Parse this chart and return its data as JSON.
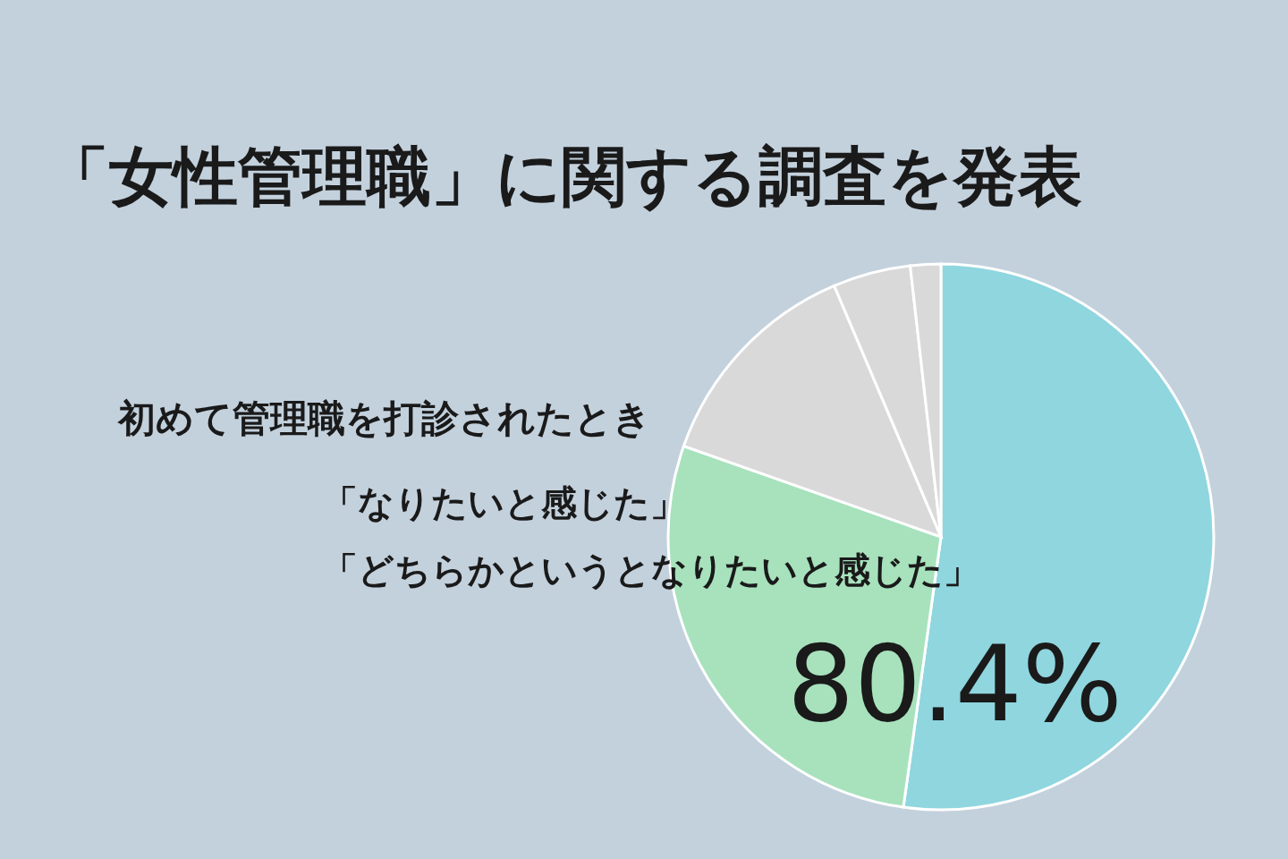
{
  "chart_data": {
    "type": "pie",
    "title": "「女性管理職」に関する調査を発表",
    "categories": [
      null,
      null,
      null,
      null,
      null
    ],
    "values": [
      52.2,
      28.2,
      13.2,
      4.6,
      1.8
    ],
    "colors": [
      "#8fd6df",
      "#a7e2bd",
      "#d9d9d9",
      "#d9d9d9",
      "#d9d9d9"
    ],
    "annotations": [
      "初めて管理職を打診されたとき",
      "「なりたいと感じた」",
      "「どちらかというとなりたいと感じた」",
      "80.4%"
    ]
  }
}
